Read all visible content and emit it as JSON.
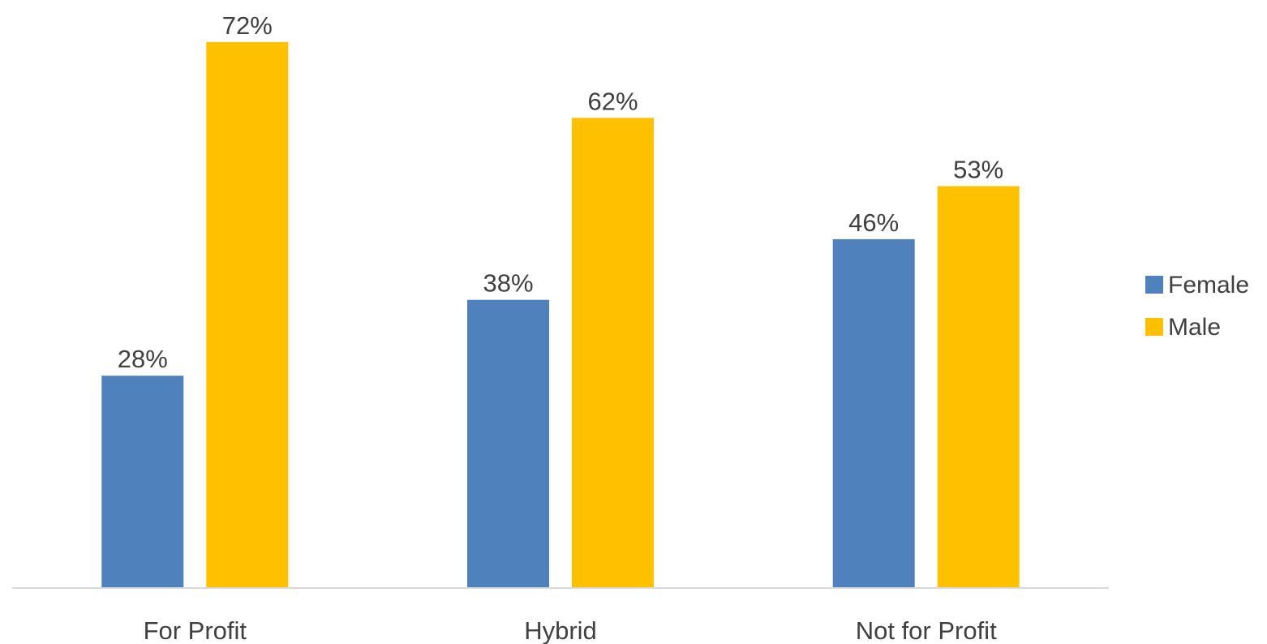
{
  "chart_data": {
    "type": "bar",
    "categories": [
      "For Profit",
      "Hybrid",
      "Not for Profit"
    ],
    "series": [
      {
        "name": "Female",
        "color": "#4F81BD",
        "values": [
          28,
          38,
          46
        ],
        "labels": [
          "28%",
          "38%",
          "46%"
        ]
      },
      {
        "name": "Male",
        "color": "#FFC000",
        "values": [
          72,
          62,
          53
        ],
        "labels": [
          "72%",
          "62%",
          "53%"
        ]
      }
    ],
    "title": "",
    "xlabel": "",
    "ylabel": "",
    "ylim": [
      0,
      80
    ],
    "grid": false,
    "legend": "right",
    "axis_color": "#D9D9D9"
  }
}
